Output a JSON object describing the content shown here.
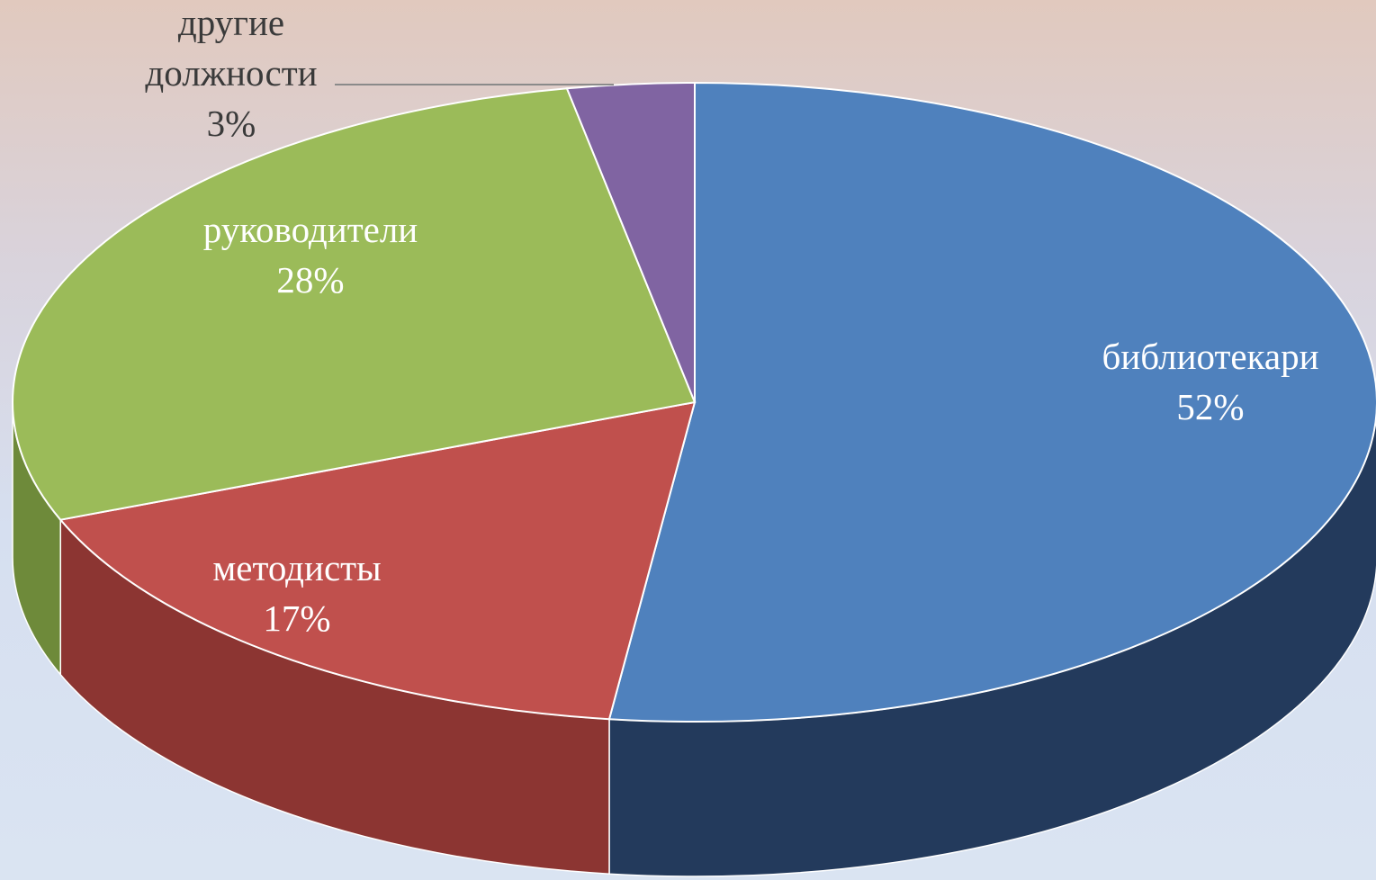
{
  "chart_data": {
    "type": "pie",
    "categories": [
      "библиотекари",
      "методисты",
      "руководители",
      "другие должности"
    ],
    "values": [
      52,
      17,
      28,
      3
    ],
    "value_labels": [
      "52%",
      "17%",
      "28%",
      "3%"
    ],
    "colors": [
      "#4f81bd",
      "#c0504d",
      "#9bbb59",
      "#8064a2"
    ],
    "side_colors": [
      "#233a5c",
      "#8c3532",
      "#6e8a3a",
      "#5a4578"
    ]
  }
}
